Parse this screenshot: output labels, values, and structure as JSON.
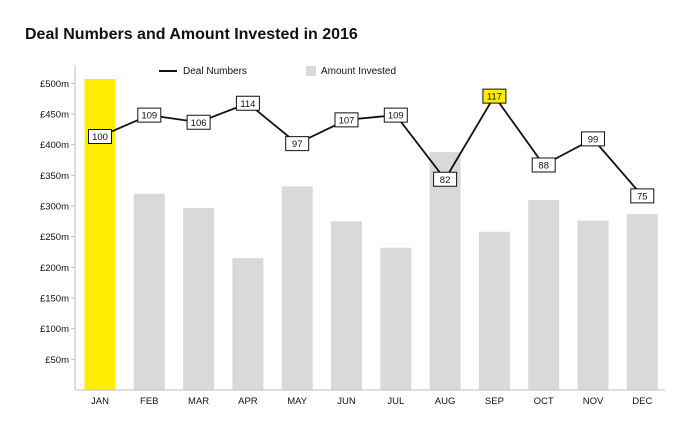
{
  "chart_data": {
    "type": "bar",
    "title": "Deal Numbers and Amount Invested in 2016",
    "categories": [
      "JAN",
      "FEB",
      "MAR",
      "APR",
      "MAY",
      "JUN",
      "JUL",
      "AUG",
      "SEP",
      "OCT",
      "NOV",
      "DEC"
    ],
    "ytick_labels": [
      "£50m",
      "£100m",
      "£150m",
      "£200m",
      "£250m",
      "£300m",
      "£350m",
      "£400m",
      "£450m",
      "£500m"
    ],
    "ylim": [
      0,
      500
    ],
    "grid": false,
    "legend_position": "top",
    "series": [
      {
        "name": "Amount Invested",
        "type": "bar",
        "color": "#d9d9d9",
        "highlight_color": "#ffed00",
        "highlight_index": 0,
        "values": [
          510,
          320,
          297,
          215,
          332,
          275,
          232,
          388,
          258,
          310,
          276,
          287
        ]
      },
      {
        "name": "Deal Numbers",
        "type": "line",
        "color": "#111111",
        "label_highlight_color": "#ffed00",
        "label_highlight_index": 8,
        "values": [
          100,
          109,
          106,
          114,
          97,
          107,
          109,
          82,
          117,
          88,
          99,
          75
        ]
      }
    ]
  }
}
